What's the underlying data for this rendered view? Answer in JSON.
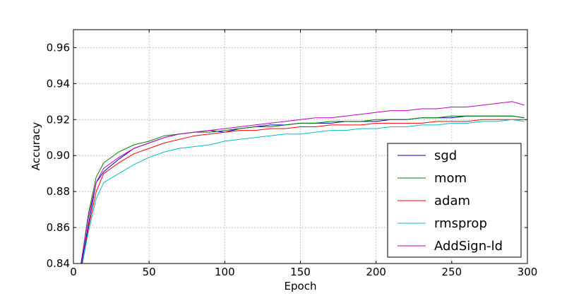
{
  "chart_data": {
    "type": "line",
    "title": "",
    "xlabel": "Epoch",
    "ylabel": "Accuracy",
    "xlim": [
      0,
      300
    ],
    "ylim": [
      0.84,
      0.97
    ],
    "xticks": [
      0,
      50,
      100,
      150,
      200,
      250,
      300
    ],
    "xtick_labels": [
      "0",
      "50",
      "100",
      "150",
      "200",
      "250",
      "300"
    ],
    "yticks": [
      0.84,
      0.86,
      0.88,
      0.9,
      0.92,
      0.94,
      0.96
    ],
    "ytick_labels": [
      "0.84",
      "0.86",
      "0.88",
      "0.90",
      "0.92",
      "0.94",
      "0.96"
    ],
    "grid": true,
    "legend_position": "lower-right",
    "series": [
      {
        "name": "sgd",
        "color": "#0000bf",
        "points": [
          [
            5,
            0.838
          ],
          [
            10,
            0.862
          ],
          [
            15,
            0.885
          ],
          [
            20,
            0.891
          ],
          [
            30,
            0.898
          ],
          [
            40,
            0.904
          ],
          [
            50,
            0.907
          ],
          [
            60,
            0.91
          ],
          [
            70,
            0.912
          ],
          [
            80,
            0.913
          ],
          [
            90,
            0.914
          ],
          [
            100,
            0.913
          ],
          [
            110,
            0.915
          ],
          [
            120,
            0.916
          ],
          [
            130,
            0.917
          ],
          [
            140,
            0.917
          ],
          [
            150,
            0.918
          ],
          [
            160,
            0.918
          ],
          [
            170,
            0.918
          ],
          [
            180,
            0.919
          ],
          [
            190,
            0.919
          ],
          [
            200,
            0.919
          ],
          [
            210,
            0.92
          ],
          [
            220,
            0.92
          ],
          [
            230,
            0.921
          ],
          [
            240,
            0.921
          ],
          [
            250,
            0.921
          ],
          [
            260,
            0.922
          ],
          [
            270,
            0.922
          ],
          [
            280,
            0.922
          ],
          [
            290,
            0.922
          ],
          [
            298,
            0.921
          ]
        ]
      },
      {
        "name": "mom",
        "color": "#008000",
        "points": [
          [
            5,
            0.84
          ],
          [
            10,
            0.868
          ],
          [
            15,
            0.888
          ],
          [
            20,
            0.896
          ],
          [
            30,
            0.902
          ],
          [
            40,
            0.906
          ],
          [
            50,
            0.908
          ],
          [
            60,
            0.911
          ],
          [
            70,
            0.912
          ],
          [
            80,
            0.913
          ],
          [
            90,
            0.913
          ],
          [
            100,
            0.914
          ],
          [
            110,
            0.915
          ],
          [
            120,
            0.916
          ],
          [
            130,
            0.916
          ],
          [
            140,
            0.917
          ],
          [
            150,
            0.918
          ],
          [
            160,
            0.918
          ],
          [
            170,
            0.919
          ],
          [
            180,
            0.919
          ],
          [
            190,
            0.919
          ],
          [
            200,
            0.92
          ],
          [
            210,
            0.92
          ],
          [
            220,
            0.92
          ],
          [
            230,
            0.921
          ],
          [
            240,
            0.921
          ],
          [
            250,
            0.922
          ],
          [
            260,
            0.922
          ],
          [
            270,
            0.922
          ],
          [
            280,
            0.922
          ],
          [
            290,
            0.922
          ],
          [
            298,
            0.921
          ]
        ]
      },
      {
        "name": "adam",
        "color": "#ff0000",
        "points": [
          [
            5,
            0.835
          ],
          [
            10,
            0.86
          ],
          [
            15,
            0.88
          ],
          [
            20,
            0.89
          ],
          [
            30,
            0.896
          ],
          [
            40,
            0.901
          ],
          [
            50,
            0.904
          ],
          [
            60,
            0.907
          ],
          [
            70,
            0.909
          ],
          [
            80,
            0.911
          ],
          [
            90,
            0.912
          ],
          [
            100,
            0.913
          ],
          [
            110,
            0.914
          ],
          [
            120,
            0.914
          ],
          [
            130,
            0.915
          ],
          [
            140,
            0.915
          ],
          [
            150,
            0.916
          ],
          [
            160,
            0.916
          ],
          [
            170,
            0.917
          ],
          [
            180,
            0.917
          ],
          [
            190,
            0.917
          ],
          [
            200,
            0.918
          ],
          [
            210,
            0.918
          ],
          [
            220,
            0.918
          ],
          [
            230,
            0.918
          ],
          [
            240,
            0.919
          ],
          [
            250,
            0.919
          ],
          [
            260,
            0.919
          ],
          [
            270,
            0.92
          ],
          [
            280,
            0.92
          ],
          [
            290,
            0.92
          ],
          [
            298,
            0.92
          ]
        ]
      },
      {
        "name": "rmsprop",
        "color": "#00bfbf",
        "points": [
          [
            5,
            0.836
          ],
          [
            10,
            0.858
          ],
          [
            15,
            0.876
          ],
          [
            20,
            0.885
          ],
          [
            30,
            0.89
          ],
          [
            40,
            0.895
          ],
          [
            50,
            0.899
          ],
          [
            60,
            0.902
          ],
          [
            70,
            0.904
          ],
          [
            80,
            0.905
          ],
          [
            90,
            0.906
          ],
          [
            100,
            0.908
          ],
          [
            110,
            0.909
          ],
          [
            120,
            0.91
          ],
          [
            130,
            0.911
          ],
          [
            140,
            0.912
          ],
          [
            150,
            0.912
          ],
          [
            160,
            0.913
          ],
          [
            170,
            0.914
          ],
          [
            180,
            0.914
          ],
          [
            190,
            0.915
          ],
          [
            200,
            0.915
          ],
          [
            210,
            0.916
          ],
          [
            220,
            0.916
          ],
          [
            230,
            0.917
          ],
          [
            240,
            0.917
          ],
          [
            250,
            0.918
          ],
          [
            260,
            0.918
          ],
          [
            270,
            0.919
          ],
          [
            280,
            0.919
          ],
          [
            290,
            0.92
          ],
          [
            298,
            0.919
          ]
        ]
      },
      {
        "name": "AddSign-ld",
        "color": "#bf00bf",
        "points": [
          [
            5,
            0.84
          ],
          [
            10,
            0.866
          ],
          [
            15,
            0.885
          ],
          [
            20,
            0.893
          ],
          [
            30,
            0.899
          ],
          [
            40,
            0.904
          ],
          [
            50,
            0.907
          ],
          [
            60,
            0.91
          ],
          [
            70,
            0.912
          ],
          [
            80,
            0.913
          ],
          [
            90,
            0.914
          ],
          [
            100,
            0.915
          ],
          [
            110,
            0.916
          ],
          [
            120,
            0.917
          ],
          [
            130,
            0.918
          ],
          [
            140,
            0.919
          ],
          [
            150,
            0.92
          ],
          [
            160,
            0.921
          ],
          [
            170,
            0.921
          ],
          [
            180,
            0.922
          ],
          [
            190,
            0.923
          ],
          [
            200,
            0.924
          ],
          [
            210,
            0.925
          ],
          [
            220,
            0.925
          ],
          [
            230,
            0.926
          ],
          [
            240,
            0.926
          ],
          [
            250,
            0.927
          ],
          [
            260,
            0.927
          ],
          [
            270,
            0.928
          ],
          [
            280,
            0.929
          ],
          [
            290,
            0.93
          ],
          [
            298,
            0.928
          ]
        ]
      }
    ]
  }
}
